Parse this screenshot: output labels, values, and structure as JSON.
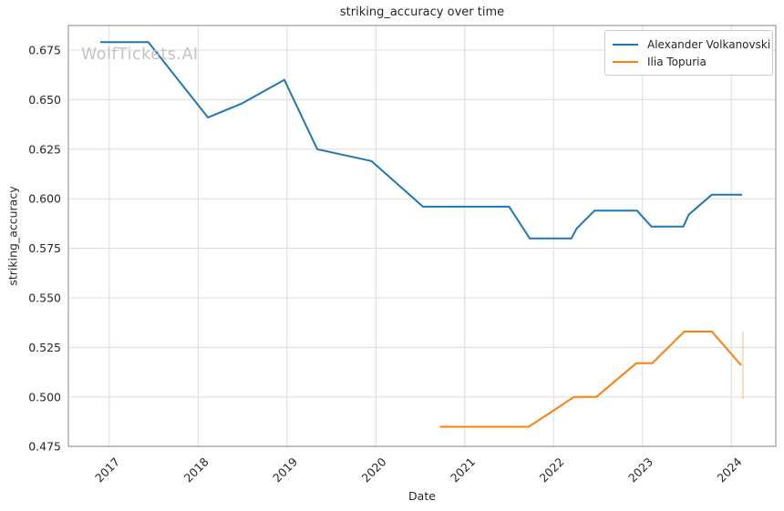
{
  "chart_data": {
    "type": "line",
    "title": "striking_accuracy over time",
    "xlabel": "Date",
    "ylabel": "striking_accuracy",
    "watermark": "WolfTickets.AI",
    "x_ticks": [
      2017,
      2018,
      2019,
      2020,
      2021,
      2022,
      2023,
      2024
    ],
    "y_ticks": [
      0.475,
      0.5,
      0.525,
      0.55,
      0.575,
      0.6,
      0.625,
      0.65,
      0.675
    ],
    "xlim": [
      2016.54,
      2024.5
    ],
    "ylim": [
      0.4751,
      0.6874
    ],
    "grid": true,
    "legend_position": "upper right",
    "series": [
      {
        "name": "Alexander Volkanovski",
        "color": "#1f77b4",
        "points": [
          [
            2016.9,
            0.679
          ],
          [
            2017.44,
            0.679
          ],
          [
            2018.11,
            0.641
          ],
          [
            2018.49,
            0.648
          ],
          [
            2018.97,
            0.66
          ],
          [
            2019.34,
            0.625
          ],
          [
            2019.95,
            0.619
          ],
          [
            2020.53,
            0.596
          ],
          [
            2021.5,
            0.596
          ],
          [
            2021.73,
            0.58
          ],
          [
            2022.2,
            0.58
          ],
          [
            2022.26,
            0.585
          ],
          [
            2022.46,
            0.594
          ],
          [
            2022.94,
            0.594
          ],
          [
            2023.1,
            0.586
          ],
          [
            2023.46,
            0.586
          ],
          [
            2023.52,
            0.592
          ],
          [
            2023.78,
            0.602
          ],
          [
            2024.12,
            0.602
          ]
        ]
      },
      {
        "name": "Ilia Topuria",
        "color": "#ff7f0e",
        "points": [
          [
            2020.72,
            0.485
          ],
          [
            2021.72,
            0.485
          ],
          [
            2022.23,
            0.5
          ],
          [
            2022.48,
            0.5
          ],
          [
            2022.93,
            0.517
          ],
          [
            2023.11,
            0.517
          ],
          [
            2023.47,
            0.533
          ],
          [
            2023.78,
            0.533
          ],
          [
            2024.11,
            0.516
          ]
        ],
        "error_bar": {
          "x": 2024.13,
          "y_low": 0.499,
          "y_high": 0.533
        }
      }
    ],
    "style": {
      "grid_color": "#dcdcdc",
      "spine_color": "#a3a3a3",
      "text_color": "#262626",
      "watermark_color": "#c3c3c3",
      "background": "#ffffff"
    }
  }
}
